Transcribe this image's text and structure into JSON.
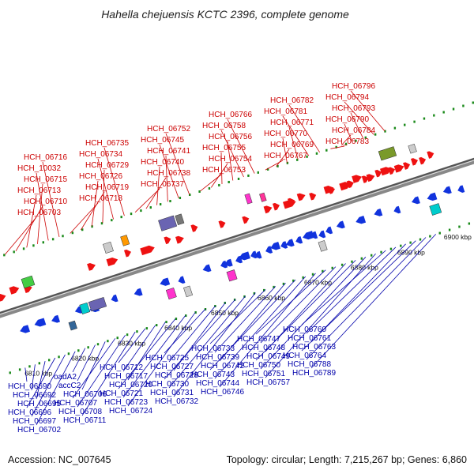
{
  "title": "Hahella chejuensis KCTC 2396, complete genome",
  "footer": {
    "accession": "Accession: NC_007645",
    "summary": "Topology: circular; Length: 7,215,267 bp; Genes: 6,860"
  },
  "colors": {
    "forward": "#ee1111",
    "reverse": "#1133dd",
    "label_forward": "#cc0000",
    "label_reverse": "#0000aa",
    "backbone": "#888888"
  },
  "ticks": [
    "6810 kbp",
    "6820 kbp",
    "6830 kbp",
    "6840 kbp",
    "6850 kbp",
    "6860 kbp",
    "6870 kbp",
    "6880 kbp",
    "6890 kbp",
    "6900 kbp"
  ],
  "top_labels": [
    "HCH_06703",
    "HCH_06710",
    "HCH_06713",
    "HCH_06715",
    "HCH_10032",
    "HCH_06716",
    "HCH_06718",
    "HCH_06719",
    "HCH_06726",
    "HCH_06729",
    "HCH_06734",
    "HCH_06735",
    "HCH_06737",
    "HCH_06738",
    "HCH_06740",
    "HCH_06741",
    "HCH_06745",
    "HCH_06752",
    "HCH_06753",
    "HCH_06754",
    "HCH_06755",
    "HCH_06756",
    "HCH_06758",
    "HCH_06766",
    "HCH_06767",
    "HCH_06769",
    "HCH_06770",
    "HCH_06771",
    "HCH_06781",
    "HCH_06782",
    "HCH_06783",
    "HCH_06784",
    "HCH_06790",
    "HCH_06793",
    "HCH_06794",
    "HCH_06796"
  ],
  "bottom_labels": [
    "HCH_06690",
    "HCH_06692",
    "HCH_06695",
    "HCH_06696",
    "HCH_06697",
    "HCH_06702",
    "oadA2",
    "accC2",
    "HCH_06706",
    "HCH_06707",
    "HCH_06708",
    "HCH_06711",
    "HCH_06712",
    "HCH_06717",
    "HCH_06720",
    "HCH_06721",
    "HCH_06723",
    "HCH_06724",
    "HCH_06725",
    "HCH_06727",
    "HCH_06728",
    "HCH_06730",
    "HCH_06731",
    "HCH_06732",
    "HCH_06733",
    "HCH_06739",
    "HCH_06742",
    "HCH_06743",
    "HCH_06744",
    "HCH_06746",
    "HCH_06747",
    "HCH_06748",
    "HCH_06749",
    "HCH_06750",
    "HCH_06751",
    "HCH_06757",
    "HCH_06760",
    "HCH_06761",
    "HCH_06763",
    "HCH_06764",
    "HCH_06788",
    "HCH_06789"
  ]
}
